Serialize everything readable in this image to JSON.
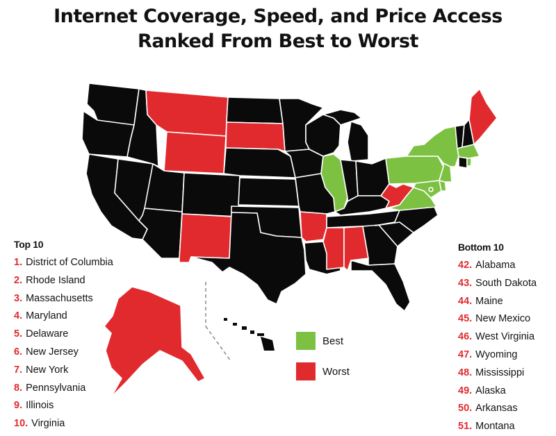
{
  "title_line1": "Internet Coverage, Speed, and Price Access",
  "title_line2": "Ranked From Best to Worst",
  "colors": {
    "best": "#7dc142",
    "worst": "#e12a2e",
    "other": "#0a0a0a"
  },
  "legend": {
    "best": "Best",
    "worst": "Worst"
  },
  "top10": {
    "heading": "Top 10",
    "items": [
      {
        "rank": "1.",
        "state": "District of Columbia"
      },
      {
        "rank": "2.",
        "state": "Rhode Island"
      },
      {
        "rank": "3.",
        "state": "Massachusetts"
      },
      {
        "rank": "4.",
        "state": "Maryland"
      },
      {
        "rank": "5.",
        "state": "Delaware"
      },
      {
        "rank": "6.",
        "state": "New Jersey"
      },
      {
        "rank": "7.",
        "state": "New York"
      },
      {
        "rank": "8.",
        "state": "Pennsylvania"
      },
      {
        "rank": "9.",
        "state": "Illinois"
      },
      {
        "rank": "10.",
        "state": "Virginia"
      }
    ]
  },
  "bottom10": {
    "heading": "Bottom 10",
    "items": [
      {
        "rank": "42.",
        "state": "Alabama"
      },
      {
        "rank": "43.",
        "state": "South Dakota"
      },
      {
        "rank": "44.",
        "state": "Maine"
      },
      {
        "rank": "45.",
        "state": "New Mexico"
      },
      {
        "rank": "46.",
        "state": "West Virginia"
      },
      {
        "rank": "47.",
        "state": "Wyoming"
      },
      {
        "rank": "48.",
        "state": "Mississippi"
      },
      {
        "rank": "49.",
        "state": "Alaska"
      },
      {
        "rank": "50.",
        "state": "Arkansas"
      },
      {
        "rank": "51.",
        "state": "Montana"
      }
    ]
  }
}
